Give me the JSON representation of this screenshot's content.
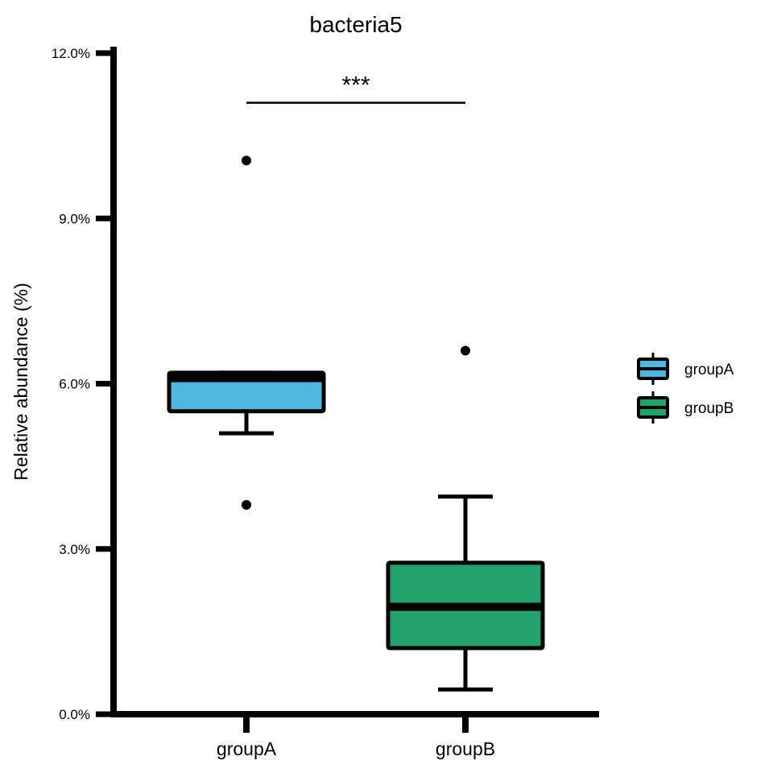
{
  "chart_data": {
    "type": "box",
    "title": "bacteria5",
    "xlabel": "",
    "ylabel": "Relative abundance (%)",
    "ylim": [
      0,
      12
    ],
    "y_ticks": [
      0,
      3,
      6,
      9,
      12
    ],
    "y_tick_labels": [
      "0.0%",
      "3.0%",
      "6.0%",
      "9.0%",
      "12.0%"
    ],
    "categories": [
      "groupA",
      "groupB"
    ],
    "series": [
      {
        "name": "groupA",
        "color": "#4FB7DE",
        "whisker_low": 5.1,
        "q1": 5.5,
        "median": 6.1,
        "q3": 6.2,
        "whisker_high": 6.2,
        "outliers": [
          10.05,
          3.8
        ]
      },
      {
        "name": "groupB",
        "color": "#22A16B",
        "whisker_low": 0.45,
        "q1": 1.2,
        "median": 1.95,
        "q3": 2.75,
        "whisker_high": 3.95,
        "outliers": [
          6.6
        ]
      }
    ],
    "significance": {
      "between": [
        "groupA",
        "groupB"
      ],
      "label": "***",
      "y": 11.1
    },
    "legend": {
      "position": "right",
      "entries": [
        "groupA",
        "groupB"
      ]
    },
    "grid": false
  }
}
